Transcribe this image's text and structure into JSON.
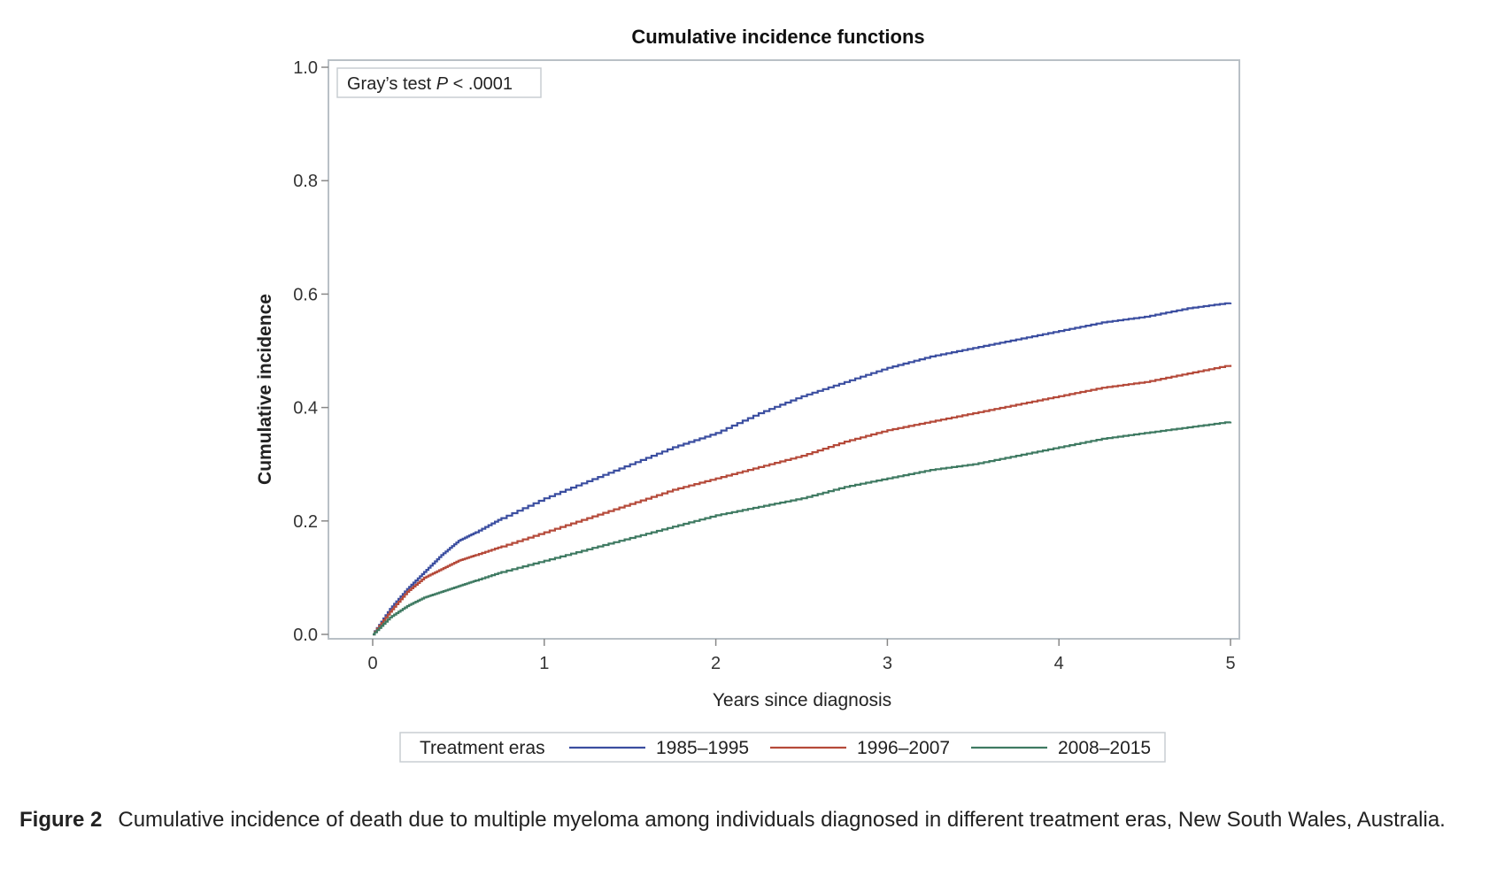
{
  "chart_data": {
    "type": "line",
    "title": "Cumulative incidence functions",
    "xlabel": "Years since diagnosis",
    "ylabel": "Cumulative incidence",
    "xlim": [
      0,
      5
    ],
    "ylim": [
      0,
      1
    ],
    "x_ticks": [
      "0",
      "1",
      "2",
      "3",
      "4",
      "5"
    ],
    "y_ticks": [
      "0.0",
      "0.2",
      "0.4",
      "0.6",
      "0.8",
      "1.0"
    ],
    "annotation": {
      "text_prefix": "Gray’s test ",
      "text_italic": "P",
      "text_suffix": " < .0001"
    },
    "legend": {
      "title": "Treatment eras",
      "placement": "bottom"
    },
    "series": [
      {
        "name": "1985–1995",
        "color": "#3b4ea0",
        "x": [
          0,
          0.1,
          0.2,
          0.3,
          0.4,
          0.5,
          0.6,
          0.75,
          1.0,
          1.25,
          1.5,
          1.75,
          2.0,
          2.25,
          2.5,
          2.75,
          3.0,
          3.25,
          3.5,
          3.75,
          4.0,
          4.25,
          4.5,
          4.75,
          5.0
        ],
        "y": [
          0,
          0.045,
          0.08,
          0.11,
          0.14,
          0.165,
          0.18,
          0.205,
          0.24,
          0.27,
          0.3,
          0.33,
          0.355,
          0.39,
          0.42,
          0.445,
          0.47,
          0.49,
          0.505,
          0.52,
          0.535,
          0.55,
          0.56,
          0.575,
          0.585
        ]
      },
      {
        "name": "1996–2007",
        "color": "#b54a3a",
        "x": [
          0,
          0.1,
          0.2,
          0.3,
          0.4,
          0.5,
          0.6,
          0.75,
          1.0,
          1.25,
          1.5,
          1.75,
          2.0,
          2.25,
          2.5,
          2.75,
          3.0,
          3.25,
          3.5,
          3.75,
          4.0,
          4.25,
          4.5,
          4.75,
          5.0
        ],
        "y": [
          0,
          0.04,
          0.075,
          0.1,
          0.115,
          0.13,
          0.14,
          0.155,
          0.18,
          0.205,
          0.23,
          0.255,
          0.275,
          0.295,
          0.315,
          0.34,
          0.36,
          0.375,
          0.39,
          0.405,
          0.42,
          0.435,
          0.445,
          0.46,
          0.475
        ]
      },
      {
        "name": "2008–2015",
        "color": "#3f7a62",
        "x": [
          0,
          0.1,
          0.2,
          0.3,
          0.4,
          0.5,
          0.6,
          0.75,
          1.0,
          1.25,
          1.5,
          1.75,
          2.0,
          2.25,
          2.5,
          2.75,
          3.0,
          3.25,
          3.5,
          3.75,
          4.0,
          4.25,
          4.5,
          4.75,
          5.0
        ],
        "y": [
          0,
          0.03,
          0.05,
          0.065,
          0.075,
          0.085,
          0.095,
          0.11,
          0.13,
          0.15,
          0.17,
          0.19,
          0.21,
          0.225,
          0.24,
          0.26,
          0.275,
          0.29,
          0.3,
          0.315,
          0.33,
          0.345,
          0.355,
          0.365,
          0.375
        ]
      }
    ]
  },
  "caption": {
    "label": "Figure 2",
    "text": "Cumulative incidence of death due to multiple myeloma among individuals diagnosed in different treatment eras, New South Wales, Australia."
  }
}
